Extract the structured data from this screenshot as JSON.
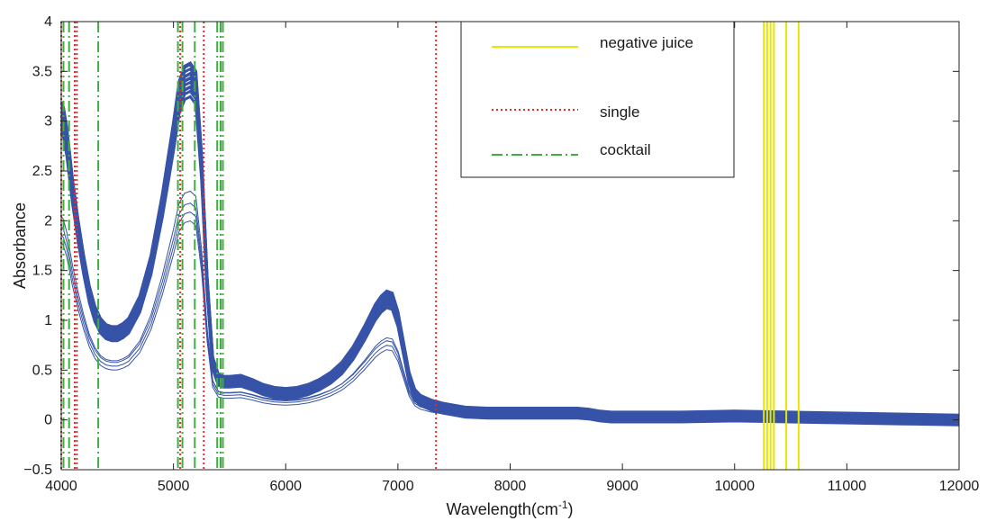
{
  "chart_data": {
    "type": "line",
    "xlabel": "Wavelength(cm",
    "xlabel_superscript": "-1",
    "xlabel_suffix": ")",
    "ylabel": "Absorbance",
    "xlim": [
      4000,
      12000
    ],
    "ylim": [
      -0.5,
      4
    ],
    "x_ticks": [
      4000,
      5000,
      6000,
      7000,
      8000,
      9000,
      10000,
      11000,
      12000
    ],
    "x_tick_labels": [
      "4000",
      "5000",
      "6000",
      "7000",
      "8000",
      "9000",
      "10000",
      "11000",
      "12000"
    ],
    "y_ticks": [
      -0.5,
      0,
      0.5,
      1,
      1.5,
      2,
      2.5,
      3,
      3.5,
      4
    ],
    "y_tick_labels": [
      "−0.5",
      "0",
      "0.5",
      "1",
      "1.5",
      "2",
      "2.5",
      "3",
      "3.5",
      "4"
    ],
    "grid": false,
    "legend_position": "top-right",
    "spectra_color": "#3653a8",
    "spectra_template": {
      "x": [
        4000,
        4020,
        4050,
        4080,
        4100,
        4150,
        4200,
        4250,
        4300,
        4350,
        4400,
        4450,
        4500,
        4550,
        4600,
        4700,
        4800,
        4900,
        5000,
        5050,
        5100,
        5150,
        5200,
        5250,
        5300,
        5350,
        5400,
        5450,
        5500,
        5600,
        5700,
        5800,
        5900,
        6000,
        6100,
        6200,
        6300,
        6400,
        6500,
        6600,
        6700,
        6800,
        6850,
        6900,
        6950,
        7000,
        7050,
        7100,
        7150,
        7200,
        7300,
        7400,
        7500,
        7600,
        7800,
        8000,
        8200,
        8400,
        8600,
        8700,
        8800,
        8900,
        9000,
        9500,
        10000,
        10500,
        11000,
        11500,
        12000
      ],
      "y": [
        3.1,
        3.05,
        2.85,
        2.55,
        2.35,
        1.95,
        1.6,
        1.3,
        1.1,
        0.98,
        0.92,
        0.9,
        0.9,
        0.93,
        0.98,
        1.2,
        1.6,
        2.2,
        2.9,
        3.3,
        3.45,
        3.48,
        3.4,
        2.6,
        1.4,
        0.6,
        0.43,
        0.41,
        0.41,
        0.42,
        0.38,
        0.33,
        0.3,
        0.29,
        0.3,
        0.33,
        0.38,
        0.45,
        0.55,
        0.7,
        0.9,
        1.12,
        1.2,
        1.25,
        1.23,
        1.05,
        0.75,
        0.45,
        0.28,
        0.22,
        0.17,
        0.14,
        0.12,
        0.1,
        0.09,
        0.09,
        0.09,
        0.09,
        0.09,
        0.08,
        0.06,
        0.05,
        0.05,
        0.05,
        0.06,
        0.05,
        0.04,
        0.03,
        0.02
      ]
    },
    "spectra": [
      {
        "scale": 1.0,
        "offset": 0.0
      },
      {
        "scale": 0.99,
        "offset": -0.01
      },
      {
        "scale": 1.01,
        "offset": 0.01
      },
      {
        "scale": 0.98,
        "offset": -0.02
      },
      {
        "scale": 1.02,
        "offset": 0.02
      },
      {
        "scale": 0.97,
        "offset": -0.03
      },
      {
        "scale": 1.03,
        "offset": 0.0
      },
      {
        "scale": 0.96,
        "offset": -0.04
      },
      {
        "scale": 1.0,
        "offset": -0.05
      },
      {
        "scale": 0.95,
        "offset": -0.06
      },
      {
        "scale": 0.99,
        "offset": 0.03
      },
      {
        "scale": 0.98,
        "offset": -0.07
      },
      {
        "scale": 0.66,
        "offset": 0.0
      },
      {
        "scale": 0.62,
        "offset": 0.02
      },
      {
        "scale": 0.6,
        "offset": 0.0
      },
      {
        "scale": 0.58,
        "offset": -0.02
      }
    ],
    "series": [
      {
        "name": "negative juice",
        "color": "#e6e600",
        "style": "solid",
        "x": [
          10260,
          10290,
          10320,
          10350,
          10460,
          10570
        ]
      },
      {
        "name": "single",
        "color": "#e32b2b",
        "style": "dotted",
        "x": [
          4000,
          4120,
          4140,
          5060,
          5270,
          7340
        ]
      },
      {
        "name": "cocktail",
        "color": "#3fae3f",
        "style": "dashdot",
        "x": [
          4020,
          4070,
          4330,
          5040,
          5080,
          5190,
          5390,
          5420,
          5440
        ]
      }
    ]
  }
}
